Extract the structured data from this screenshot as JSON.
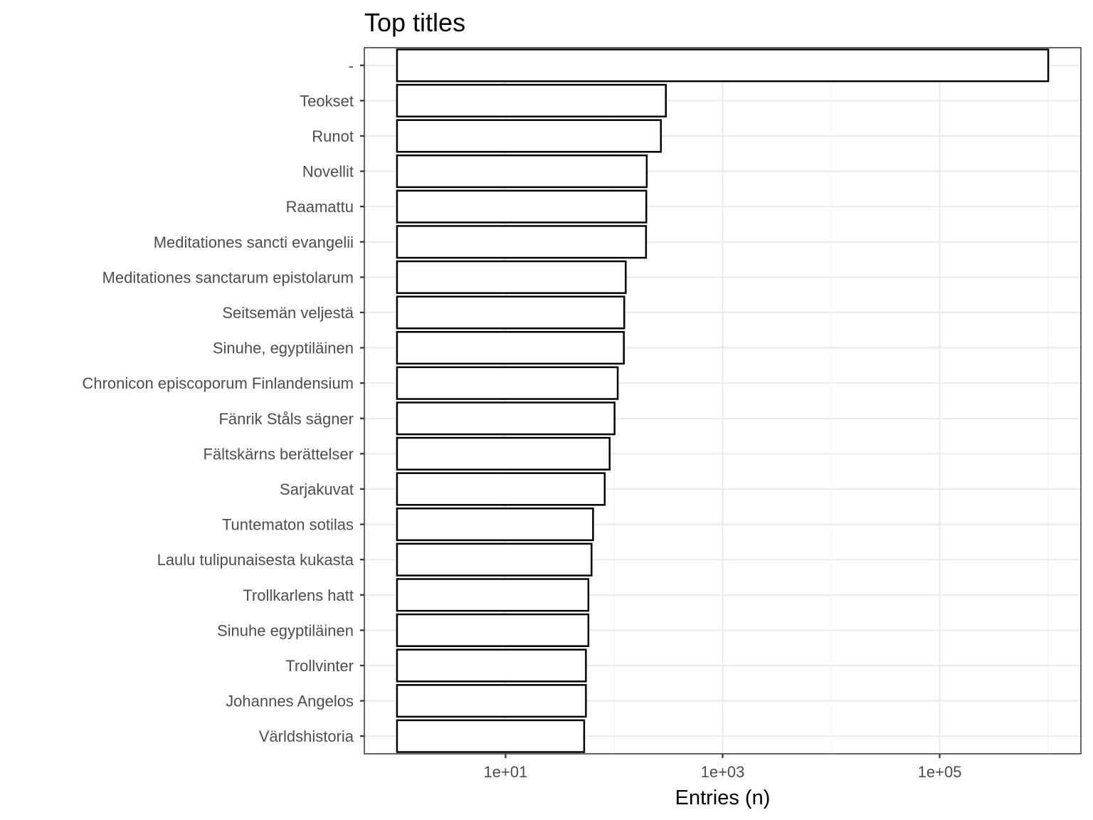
{
  "chart_data": {
    "type": "bar",
    "orientation": "horizontal",
    "title": "Top titles",
    "xlabel": "Entries (n)",
    "ylabel": "",
    "x_scale": "log10",
    "xlim": [
      0.5,
      2000000
    ],
    "x_ticks": [
      10,
      1000,
      100000
    ],
    "x_tick_labels": [
      "1e+01",
      "1e+03",
      "1e+05"
    ],
    "grid": true,
    "categories": [
      "-",
      "Teokset",
      "Runot",
      "Novellit",
      "Raamattu",
      "Meditationes sancti evangelii",
      "Meditationes sanctarum epistolarum",
      "Seitsemän veljestä",
      "Sinuhe, egyptiläinen",
      "Chronicon episcoporum Finlandensium",
      "Fänrik Ståls sägner",
      "Fältskärns berättelser",
      "Sarjakuvat",
      "Tuntematon sotilas",
      "Laulu tulipunaisesta kukasta",
      "Trollkarlens hatt",
      "Sinuhe egyptiläinen",
      "Trollvinter",
      "Johannes Angelos",
      "Världshistoria"
    ],
    "values": [
      1000000,
      300,
      270,
      200,
      198,
      197,
      128,
      124,
      123,
      108,
      101,
      91,
      82,
      64,
      62,
      58,
      58,
      55,
      55,
      53
    ],
    "bar_fill": "#ffffff",
    "bar_stroke": "#000000"
  }
}
